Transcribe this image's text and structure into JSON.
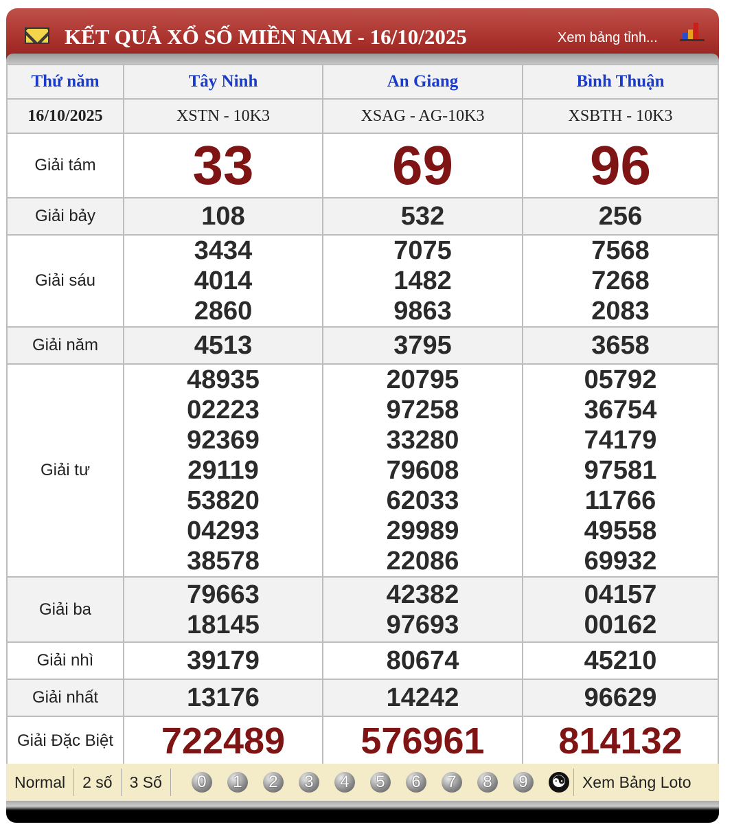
{
  "header": {
    "title": "KẾT QUẢ XỔ SỐ MIỀN NAM - 16/10/2025",
    "link": "Xem bảng tỉnh...",
    "icons": [
      "envelope-icon",
      "bar-chart-icon"
    ]
  },
  "table": {
    "weekday": "Thứ năm",
    "date": "16/10/2025",
    "provinces": [
      {
        "name": "Tây Ninh",
        "code": "XSTN - 10K3"
      },
      {
        "name": "An Giang",
        "code": "XSAG - AG-10K3"
      },
      {
        "name": "Bình Thuận",
        "code": "XSBTH - 10K3"
      }
    ],
    "prizes": [
      {
        "label": "Giải tám",
        "values": [
          [
            "33"
          ],
          [
            "69"
          ],
          [
            "96"
          ]
        ]
      },
      {
        "label": "Giải bảy",
        "values": [
          [
            "108"
          ],
          [
            "532"
          ],
          [
            "256"
          ]
        ]
      },
      {
        "label": "Giải sáu",
        "values": [
          [
            "3434",
            "4014",
            "2860"
          ],
          [
            "7075",
            "1482",
            "9863"
          ],
          [
            "7568",
            "7268",
            "2083"
          ]
        ]
      },
      {
        "label": "Giải năm",
        "values": [
          [
            "4513"
          ],
          [
            "3795"
          ],
          [
            "3658"
          ]
        ]
      },
      {
        "label": "Giải tư",
        "values": [
          [
            "48935",
            "02223",
            "92369",
            "29119",
            "53820",
            "04293",
            "38578"
          ],
          [
            "20795",
            "97258",
            "33280",
            "79608",
            "62033",
            "29989",
            "22086"
          ],
          [
            "05792",
            "36754",
            "74179",
            "97581",
            "11766",
            "49558",
            "69932"
          ]
        ]
      },
      {
        "label": "Giải ba",
        "values": [
          [
            "79663",
            "18145"
          ],
          [
            "42382",
            "97693"
          ],
          [
            "04157",
            "00162"
          ]
        ]
      },
      {
        "label": "Giải nhì",
        "values": [
          [
            "39179"
          ],
          [
            "80674"
          ],
          [
            "45210"
          ]
        ]
      },
      {
        "label": "Giải nhất",
        "values": [
          [
            "13176"
          ],
          [
            "14242"
          ],
          [
            "96629"
          ]
        ]
      },
      {
        "label": "Giải Đặc Biệt",
        "values": [
          [
            "722489"
          ],
          [
            "576961"
          ],
          [
            "814132"
          ]
        ]
      }
    ]
  },
  "footer": {
    "modes": [
      "Normal",
      "2 số",
      "3 Số"
    ],
    "digits": [
      "0",
      "1",
      "2",
      "3",
      "4",
      "5",
      "6",
      "7",
      "8",
      "9"
    ],
    "yinyang": "☯",
    "loto": "Xem Bảng Loto"
  },
  "colors": {
    "header_red": "#a8302b",
    "province_blue": "#1a3cc8",
    "highlight_red": "#7f1414",
    "footer_bg": "#f4ecc9"
  }
}
